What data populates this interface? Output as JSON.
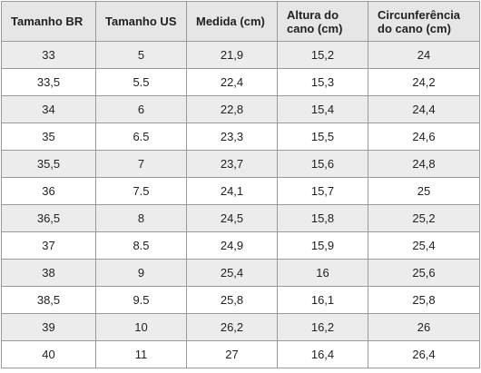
{
  "table": {
    "header": [
      "Tamanho BR",
      "Tamanho US",
      "Medida (cm)",
      "Altura do cano (cm)",
      "Circunferência do cano (cm)"
    ],
    "rows": [
      [
        "33",
        "5",
        "21,9",
        "15,2",
        "24"
      ],
      [
        "33,5",
        "5.5",
        "22,4",
        "15,3",
        "24,2"
      ],
      [
        "34",
        "6",
        "22,8",
        "15,4",
        "24,4"
      ],
      [
        "35",
        "6.5",
        "23,3",
        "15,5",
        "24,6"
      ],
      [
        "35,5",
        "7",
        "23,7",
        "15,6",
        "24,8"
      ],
      [
        "36",
        "7.5",
        "24,1",
        "15,7",
        "25"
      ],
      [
        "36,5",
        "8",
        "24,5",
        "15,8",
        "25,2"
      ],
      [
        "37",
        "8.5",
        "24,9",
        "15,9",
        "25,4"
      ],
      [
        "38",
        "9",
        "25,4",
        "16",
        "25,6"
      ],
      [
        "38,5",
        "9.5",
        "25,8",
        "16,1",
        "25,8"
      ],
      [
        "39",
        "10",
        "26,2",
        "16,2",
        "26"
      ],
      [
        "40",
        "11",
        "27",
        "16,4",
        "26,4"
      ]
    ]
  }
}
